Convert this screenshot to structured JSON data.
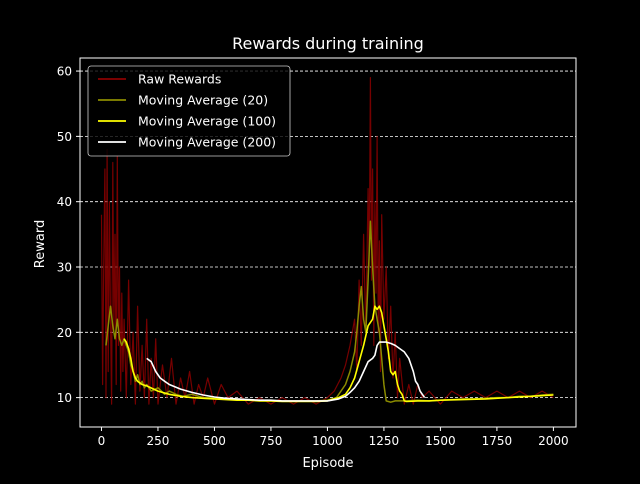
{
  "chart_data": {
    "type": "line",
    "title": "Rewards during training",
    "xlabel": "Episode",
    "ylabel": "Reward",
    "xlim": [
      -95,
      2100
    ],
    "ylim": [
      5.5,
      62
    ],
    "x_ticks": [
      0,
      250,
      500,
      750,
      1000,
      1250,
      1500,
      1750,
      2000
    ],
    "y_ticks": [
      10,
      20,
      30,
      40,
      50,
      60
    ],
    "grid": "horizontal dashed",
    "legend_position": "top-left",
    "series": [
      {
        "name": "Raw Rewards",
        "color": "#8b0000",
        "style": "noisy episode rewards",
        "points": [
          [
            0,
            38
          ],
          [
            5,
            12
          ],
          [
            10,
            30
          ],
          [
            15,
            45
          ],
          [
            20,
            10
          ],
          [
            25,
            48
          ],
          [
            30,
            14
          ],
          [
            35,
            40
          ],
          [
            40,
            22
          ],
          [
            45,
            9
          ],
          [
            50,
            46
          ],
          [
            55,
            20
          ],
          [
            60,
            35
          ],
          [
            65,
            12
          ],
          [
            70,
            47
          ],
          [
            75,
            18
          ],
          [
            80,
            30
          ],
          [
            85,
            11
          ],
          [
            90,
            26
          ],
          [
            95,
            14
          ],
          [
            100,
            22
          ],
          [
            110,
            10
          ],
          [
            120,
            28
          ],
          [
            130,
            12
          ],
          [
            140,
            20
          ],
          [
            150,
            9
          ],
          [
            160,
            24
          ],
          [
            170,
            11
          ],
          [
            180,
            18
          ],
          [
            190,
            10
          ],
          [
            200,
            22
          ],
          [
            210,
            9
          ],
          [
            220,
            16
          ],
          [
            230,
            10
          ],
          [
            240,
            19
          ],
          [
            250,
            9
          ],
          [
            270,
            15
          ],
          [
            290,
            10
          ],
          [
            310,
            16
          ],
          [
            330,
            9
          ],
          [
            350,
            13
          ],
          [
            370,
            10
          ],
          [
            390,
            14
          ],
          [
            410,
            9
          ],
          [
            430,
            12
          ],
          [
            450,
            10
          ],
          [
            470,
            13
          ],
          [
            500,
            9
          ],
          [
            530,
            12
          ],
          [
            560,
            10
          ],
          [
            600,
            11
          ],
          [
            650,
            9
          ],
          [
            700,
            10
          ],
          [
            750,
            9
          ],
          [
            800,
            10
          ],
          [
            850,
            9
          ],
          [
            900,
            10
          ],
          [
            950,
            9
          ],
          [
            1000,
            10
          ],
          [
            1030,
            11
          ],
          [
            1060,
            13
          ],
          [
            1080,
            15
          ],
          [
            1100,
            18
          ],
          [
            1120,
            22
          ],
          [
            1130,
            14
          ],
          [
            1140,
            28
          ],
          [
            1150,
            18
          ],
          [
            1160,
            35
          ],
          [
            1170,
            20
          ],
          [
            1180,
            42
          ],
          [
            1185,
            30
          ],
          [
            1190,
            59
          ],
          [
            1195,
            28
          ],
          [
            1200,
            45
          ],
          [
            1205,
            18
          ],
          [
            1210,
            40
          ],
          [
            1215,
            26
          ],
          [
            1220,
            50
          ],
          [
            1225,
            20
          ],
          [
            1230,
            34
          ],
          [
            1235,
            14
          ],
          [
            1240,
            38
          ],
          [
            1250,
            22
          ],
          [
            1260,
            30
          ],
          [
            1270,
            16
          ],
          [
            1280,
            24
          ],
          [
            1290,
            13
          ],
          [
            1300,
            20
          ],
          [
            1310,
            10
          ],
          [
            1320,
            16
          ],
          [
            1340,
            9
          ],
          [
            1360,
            12
          ],
          [
            1380,
            9
          ],
          [
            1400,
            12
          ],
          [
            1420,
            10
          ],
          [
            1450,
            11
          ],
          [
            1500,
            9
          ],
          [
            1550,
            11
          ],
          [
            1600,
            10
          ],
          [
            1650,
            11
          ],
          [
            1700,
            10
          ],
          [
            1750,
            11
          ],
          [
            1800,
            10
          ],
          [
            1850,
            11
          ],
          [
            1900,
            10
          ],
          [
            1950,
            11
          ],
          [
            2000,
            10
          ]
        ]
      },
      {
        "name": "Moving Average (20)",
        "color": "#8b8b00",
        "points": [
          [
            20,
            18
          ],
          [
            30,
            21
          ],
          [
            40,
            24
          ],
          [
            50,
            21
          ],
          [
            60,
            19
          ],
          [
            70,
            22
          ],
          [
            80,
            19
          ],
          [
            90,
            18
          ],
          [
            100,
            19
          ],
          [
            110,
            18
          ],
          [
            120,
            17
          ],
          [
            130,
            15
          ],
          [
            140,
            14
          ],
          [
            150,
            12.5
          ],
          [
            160,
            13.5
          ],
          [
            170,
            12
          ],
          [
            180,
            12.5
          ],
          [
            190,
            11.5
          ],
          [
            200,
            12
          ],
          [
            220,
            11
          ],
          [
            250,
            11.5
          ],
          [
            280,
            10.5
          ],
          [
            300,
            11
          ],
          [
            330,
            10.5
          ],
          [
            360,
            10.2
          ],
          [
            400,
            10.5
          ],
          [
            450,
            10
          ],
          [
            500,
            10
          ],
          [
            550,
            9.8
          ],
          [
            600,
            9.7
          ],
          [
            650,
            9.6
          ],
          [
            700,
            9.6
          ],
          [
            750,
            9.5
          ],
          [
            800,
            9.5
          ],
          [
            850,
            9.5
          ],
          [
            900,
            9.5
          ],
          [
            950,
            9.5
          ],
          [
            1000,
            9.6
          ],
          [
            1040,
            10
          ],
          [
            1060,
            11
          ],
          [
            1080,
            12
          ],
          [
            1100,
            14
          ],
          [
            1120,
            17
          ],
          [
            1130,
            20
          ],
          [
            1140,
            24
          ],
          [
            1150,
            27
          ],
          [
            1160,
            22
          ],
          [
            1170,
            20
          ],
          [
            1180,
            28
          ],
          [
            1190,
            37
          ],
          [
            1200,
            30
          ],
          [
            1210,
            24
          ],
          [
            1220,
            22
          ],
          [
            1230,
            20
          ],
          [
            1240,
            16
          ],
          [
            1250,
            12
          ],
          [
            1260,
            9.5
          ],
          [
            1280,
            9.3
          ],
          [
            1300,
            9.5
          ],
          [
            1350,
            9.5
          ],
          [
            1400,
            9.6
          ],
          [
            1450,
            9.5
          ],
          [
            1500,
            9.6
          ],
          [
            1550,
            9.7
          ],
          [
            1600,
            9.8
          ],
          [
            1650,
            9.8
          ],
          [
            1700,
            9.9
          ],
          [
            1750,
            10
          ],
          [
            1800,
            10
          ],
          [
            1850,
            10.2
          ],
          [
            1900,
            10.2
          ],
          [
            1950,
            10.4
          ],
          [
            2000,
            10.5
          ]
        ]
      },
      {
        "name": "Moving Average (100)",
        "color": "#ffff00",
        "points": [
          [
            100,
            19
          ],
          [
            110,
            18.5
          ],
          [
            120,
            17.5
          ],
          [
            130,
            16
          ],
          [
            140,
            14
          ],
          [
            150,
            13
          ],
          [
            160,
            12.5
          ],
          [
            180,
            12
          ],
          [
            200,
            11.8
          ],
          [
            250,
            11
          ],
          [
            300,
            10.5
          ],
          [
            350,
            10.2
          ],
          [
            400,
            10
          ],
          [
            450,
            9.9
          ],
          [
            500,
            9.8
          ],
          [
            550,
            9.7
          ],
          [
            600,
            9.6
          ],
          [
            650,
            9.6
          ],
          [
            700,
            9.5
          ],
          [
            750,
            9.5
          ],
          [
            800,
            9.4
          ],
          [
            850,
            9.4
          ],
          [
            900,
            9.4
          ],
          [
            950,
            9.4
          ],
          [
            1000,
            9.5
          ],
          [
            1050,
            10
          ],
          [
            1080,
            10.5
          ],
          [
            1100,
            11.5
          ],
          [
            1120,
            13
          ],
          [
            1140,
            15.5
          ],
          [
            1160,
            18
          ],
          [
            1180,
            21
          ],
          [
            1200,
            22
          ],
          [
            1210,
            24
          ],
          [
            1220,
            23.5
          ],
          [
            1230,
            24
          ],
          [
            1240,
            23
          ],
          [
            1250,
            21
          ],
          [
            1260,
            19
          ],
          [
            1270,
            17
          ],
          [
            1280,
            14
          ],
          [
            1290,
            13.5
          ],
          [
            1300,
            14
          ],
          [
            1310,
            12
          ],
          [
            1320,
            11
          ],
          [
            1330,
            10.5
          ],
          [
            1340,
            9.5
          ],
          [
            1350,
            9.4
          ],
          [
            1400,
            9.5
          ],
          [
            1450,
            9.5
          ],
          [
            1500,
            9.6
          ],
          [
            1600,
            9.7
          ],
          [
            1700,
            9.8
          ],
          [
            1800,
            10
          ],
          [
            1900,
            10.2
          ],
          [
            2000,
            10.4
          ]
        ]
      },
      {
        "name": "Moving Average (200)",
        "color": "#ffffff",
        "points": [
          [
            200,
            16
          ],
          [
            220,
            15.5
          ],
          [
            240,
            14
          ],
          [
            260,
            13
          ],
          [
            280,
            12.5
          ],
          [
            300,
            12
          ],
          [
            350,
            11.3
          ],
          [
            400,
            10.8
          ],
          [
            450,
            10.4
          ],
          [
            500,
            10.1
          ],
          [
            550,
            9.9
          ],
          [
            600,
            9.8
          ],
          [
            650,
            9.7
          ],
          [
            700,
            9.6
          ],
          [
            750,
            9.6
          ],
          [
            800,
            9.5
          ],
          [
            850,
            9.5
          ],
          [
            900,
            9.5
          ],
          [
            950,
            9.5
          ],
          [
            1000,
            9.5
          ],
          [
            1050,
            9.8
          ],
          [
            1080,
            10.2
          ],
          [
            1100,
            10.8
          ],
          [
            1120,
            11.5
          ],
          [
            1140,
            12.5
          ],
          [
            1160,
            14
          ],
          [
            1180,
            15.5
          ],
          [
            1200,
            16
          ],
          [
            1210,
            16.5
          ],
          [
            1220,
            18
          ],
          [
            1230,
            18.5
          ],
          [
            1240,
            18.5
          ],
          [
            1260,
            18.5
          ],
          [
            1280,
            18.3
          ],
          [
            1300,
            18
          ],
          [
            1320,
            17.5
          ],
          [
            1340,
            17
          ],
          [
            1360,
            16
          ],
          [
            1380,
            14
          ],
          [
            1390,
            12.5
          ],
          [
            1400,
            12
          ],
          [
            1410,
            11
          ],
          [
            1420,
            10.5
          ],
          [
            1430,
            10
          ]
        ]
      }
    ]
  }
}
